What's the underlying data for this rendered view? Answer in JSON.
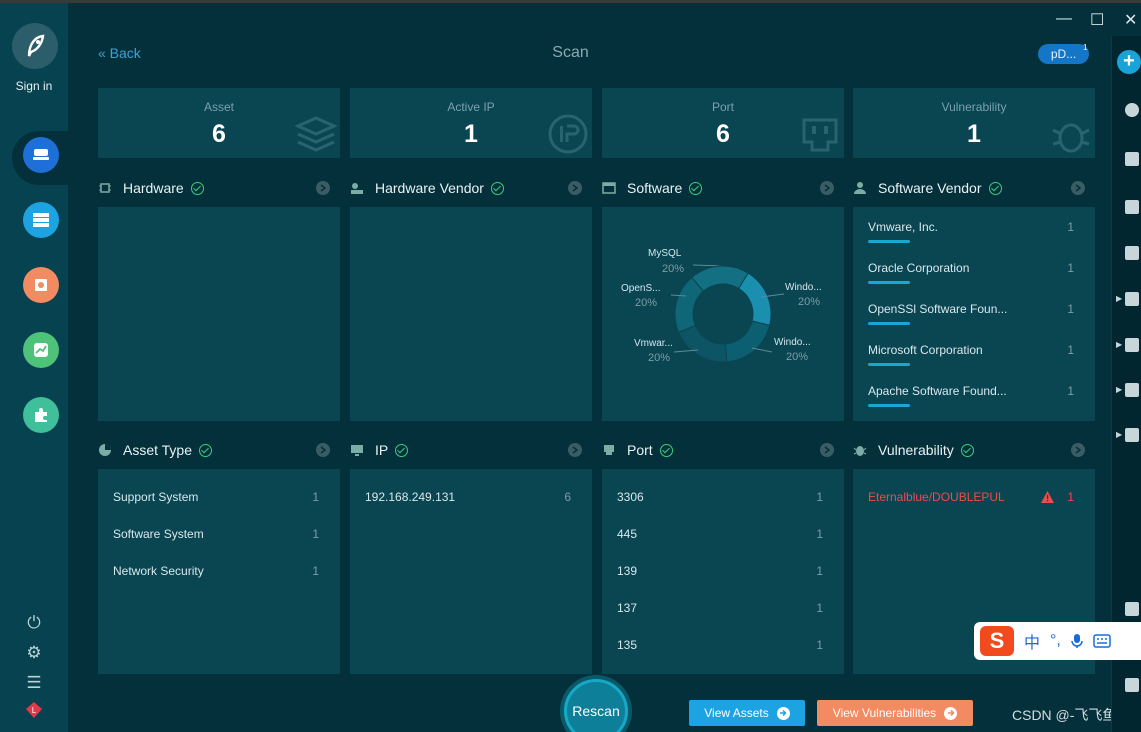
{
  "window": {
    "title": "Scan",
    "minimize": "—",
    "maximize": "☐",
    "close": "✕"
  },
  "sidebar": {
    "sign_in": "Sign in"
  },
  "header": {
    "back_label": "« Back",
    "user_button": "pD...",
    "user_badge": "1"
  },
  "stats": [
    {
      "label": "Asset",
      "value": "6",
      "icon": "layers-icon"
    },
    {
      "label": "Active IP",
      "value": "1",
      "icon": "ip-icon"
    },
    {
      "label": "Port",
      "value": "6",
      "icon": "port-icon"
    },
    {
      "label": "Vulnerability",
      "value": "1",
      "icon": "bug-icon"
    }
  ],
  "sections": {
    "hardware": {
      "title": "Hardware"
    },
    "hardware_vendor": {
      "title": "Hardware Vendor"
    },
    "software": {
      "title": "Software"
    },
    "software_vendor": {
      "title": "Software Vendor",
      "items": [
        {
          "name": "Vmware, Inc.",
          "count": "1"
        },
        {
          "name": "Oracle Corporation",
          "count": "1"
        },
        {
          "name": "OpenSSl Software Foun...",
          "count": "1"
        },
        {
          "name": "Microsoft Corporation",
          "count": "1"
        },
        {
          "name": "Apache Software Found...",
          "count": "1"
        }
      ]
    },
    "asset_type": {
      "title": "Asset Type",
      "items": [
        {
          "name": "Support System",
          "count": "1"
        },
        {
          "name": "Software System",
          "count": "1"
        },
        {
          "name": "Network Security",
          "count": "1"
        }
      ]
    },
    "ip": {
      "title": "IP",
      "items": [
        {
          "name": "192.168.249.131",
          "count": "6"
        }
      ]
    },
    "port": {
      "title": "Port",
      "items": [
        {
          "name": "3306",
          "count": "1"
        },
        {
          "name": "445",
          "count": "1"
        },
        {
          "name": "139",
          "count": "1"
        },
        {
          "name": "137",
          "count": "1"
        },
        {
          "name": "135",
          "count": "1"
        }
      ]
    },
    "vulnerability": {
      "title": "Vulnerability",
      "items": [
        {
          "name": "Eternalblue/DOUBLEPUL",
          "count": "1"
        }
      ]
    }
  },
  "chart_data": {
    "type": "pie",
    "variant": "donut",
    "title": "",
    "slices": [
      {
        "label": "MySQL",
        "value": 20,
        "text": "20%"
      },
      {
        "label": "Windo...",
        "value": 20,
        "text": "20%"
      },
      {
        "label": "Windo...",
        "value": 20,
        "text": "20%"
      },
      {
        "label": "Vmwar...",
        "value": 20,
        "text": "20%"
      },
      {
        "label": "OpenS...",
        "value": 20,
        "text": "20%"
      }
    ],
    "colors": [
      "#1b8fb0",
      "#0b5f70",
      "#0d5565",
      "#0e6677",
      "#136f82"
    ]
  },
  "actions": {
    "rescan": "Rescan",
    "view_assets": "View Assets",
    "view_vulnerabilities": "View Vulnerabilities"
  },
  "watermark": "CSDN @-飞飞鱼",
  "ime": {
    "lang": "中",
    "punct": "°,",
    "logo": "S"
  }
}
